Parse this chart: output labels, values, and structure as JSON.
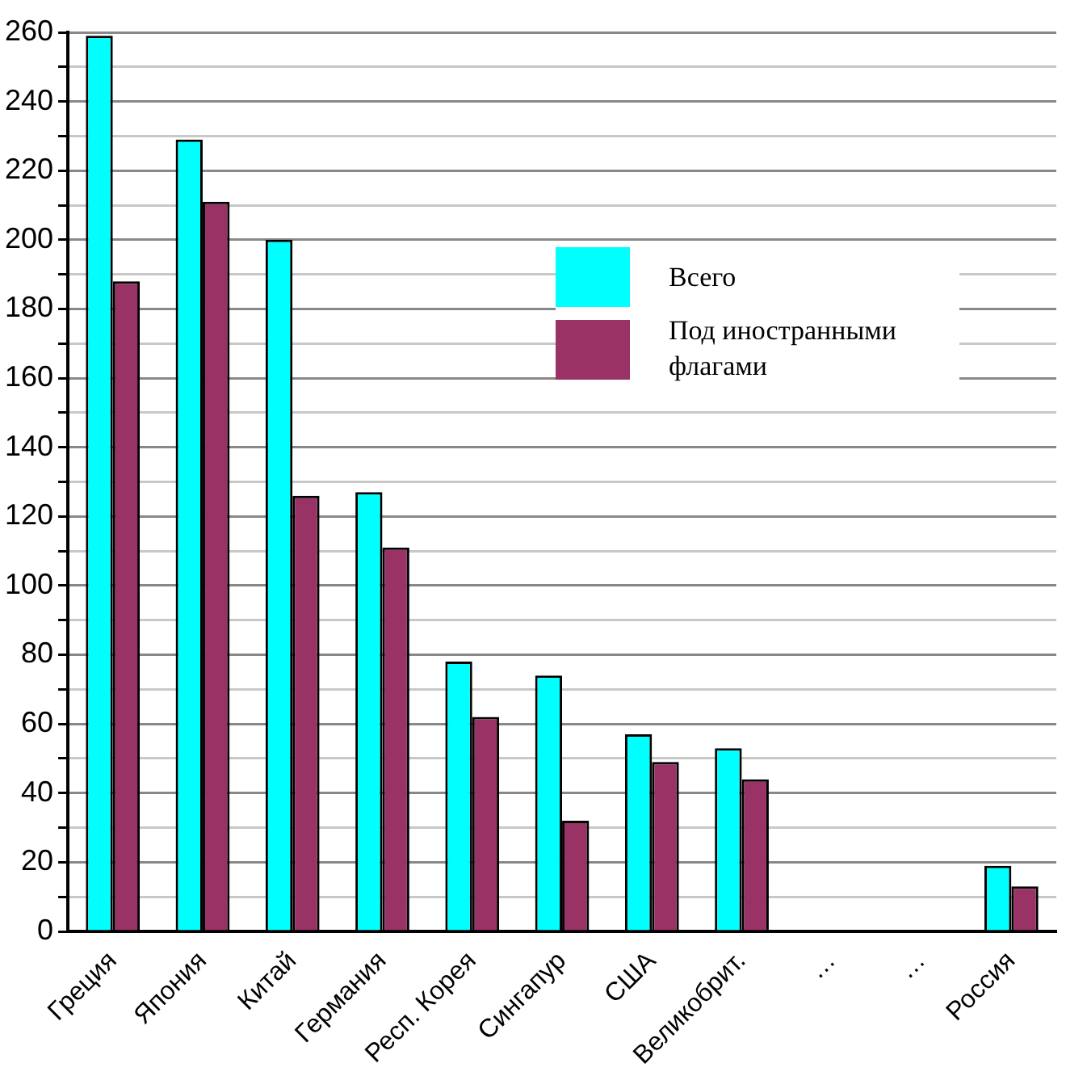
{
  "chart_data": {
    "type": "bar",
    "categories": [
      "Греция",
      "Япония",
      "Китай",
      "Германия",
      "Респ. Корея",
      "Сингапур",
      "США",
      "Великобрит.",
      "…",
      "…",
      "Россия"
    ],
    "series": [
      {
        "name": "Всего",
        "color": "#00ffff",
        "values": [
          259,
          229,
          200,
          127,
          78,
          74,
          57,
          53,
          null,
          null,
          19
        ]
      },
      {
        "name": "Под иностранными флагами",
        "color": "#993366",
        "values": [
          188,
          211,
          126,
          111,
          62,
          32,
          49,
          44,
          null,
          null,
          13
        ]
      }
    ],
    "ylim": [
      0,
      260
    ],
    "yticks": [
      0,
      {
        "value": 10,
        "label": null
      },
      20,
      {
        "value": 30,
        "label": null
      },
      40,
      {
        "value": 50,
        "label": null
      },
      60,
      {
        "value": 70,
        "label": null
      },
      80,
      {
        "value": 90,
        "label": null
      },
      100,
      {
        "value": 110,
        "label": null
      },
      120,
      {
        "value": 130,
        "label": null
      },
      140,
      {
        "value": 150,
        "label": null
      },
      160,
      {
        "value": 170,
        "label": null
      },
      180,
      {
        "value": 190,
        "label": null
      },
      200,
      {
        "value": 210,
        "label": null
      },
      220,
      {
        "value": 230,
        "label": null
      },
      240,
      {
        "value": 250,
        "label": null
      },
      260
    ],
    "grid": "y",
    "legend": "right"
  }
}
